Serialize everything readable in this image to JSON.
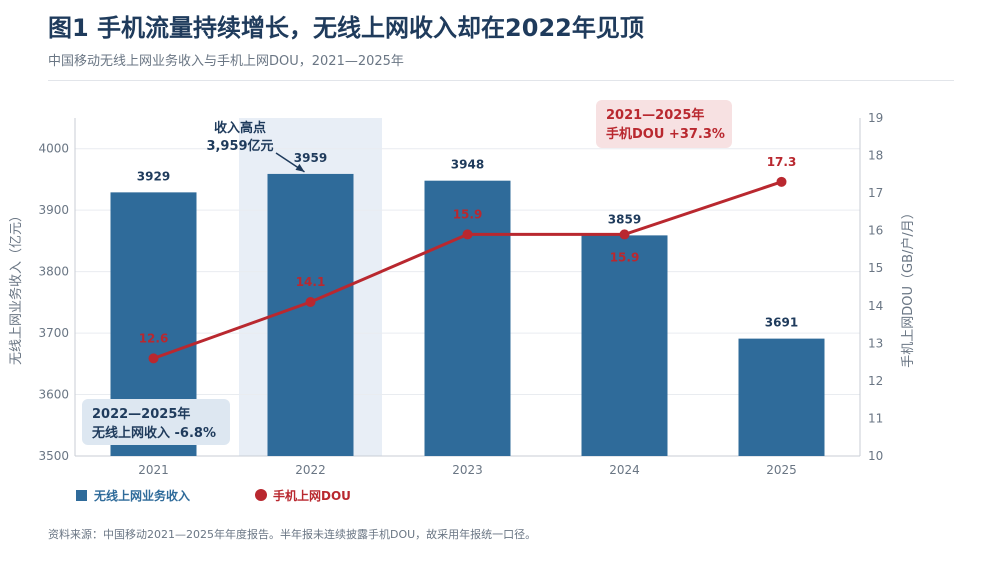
{
  "title": "图1  手机流量持续增长，无线上网收入却在2022年见顶",
  "subtitle": "中国移动无线上网业务收入与手机上网DOU，2021—2025年",
  "source": "资料来源：中国移动2021—2025年年度报告。半年报未连续披露手机DOU，故采用年报统一口径。",
  "colors": {
    "bar": "#2f6b9a",
    "line": "#b9282f",
    "highlight": "#e8eef6",
    "title": "#1f3b5c",
    "axis_text": "#6a7684",
    "callout_blue_bg": "#dde7f1",
    "callout_red_bg": "#f7e1e2"
  },
  "chart_data": {
    "type": "bar",
    "categories": [
      "2021",
      "2022",
      "2023",
      "2024",
      "2025"
    ],
    "series": [
      {
        "name": "无线上网业务收入",
        "type": "bar",
        "axis": "left",
        "values": [
          3929,
          3959,
          3948,
          3859,
          3691
        ],
        "labels": [
          "3929",
          "3959",
          "3948",
          "3859",
          "3691"
        ]
      },
      {
        "name": "手机上网DOU",
        "type": "line",
        "axis": "right",
        "values": [
          12.6,
          14.1,
          15.9,
          15.9,
          17.3
        ],
        "labels": [
          "12.6",
          "14.1",
          "15.9",
          "15.9",
          "17.3"
        ]
      }
    ],
    "ylabel_left": "无线上网业务收入（亿元）",
    "ylabel_right": "手机上网DOU（GB/户/月）",
    "ylim_left": [
      3500,
      4050
    ],
    "ylim_right": [
      10,
      19
    ],
    "yticks_left": [
      "3500",
      "3600",
      "3700",
      "3800",
      "3900",
      "4000"
    ],
    "yticks_right": [
      "10",
      "11",
      "12",
      "13",
      "14",
      "15",
      "16",
      "17",
      "18",
      "19"
    ],
    "highlight_category": "2022",
    "annotations": {
      "peak_line1": "收入高点",
      "peak_line2": "3,959亿元",
      "revenue_change_line1": "2022—2025年",
      "revenue_change_line2": "无线上网收入 -6.8%",
      "dou_change_line1": "2021—2025年",
      "dou_change_line2": "手机DOU +37.3%"
    },
    "grid": true,
    "legend": "bottom-left"
  }
}
